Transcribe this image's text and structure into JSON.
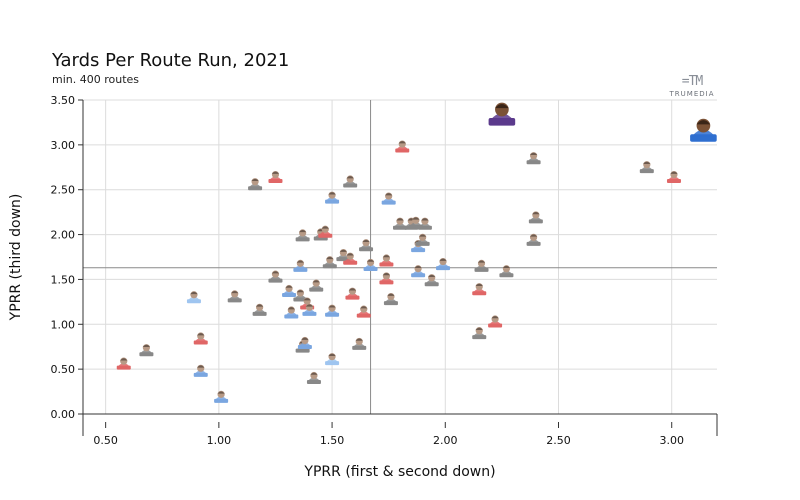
{
  "chart_data": {
    "type": "scatter",
    "title": "Yards Per Route Run, 2021",
    "subtitle": "min. 400 routes",
    "brand": "TRUMEDIA",
    "xlabel": "YPRR (first & second down)",
    "ylabel": "YPRR (third down)",
    "xlim": [
      0.4,
      3.2
    ],
    "ylim": [
      0.0,
      3.5
    ],
    "xticks": [
      "0.50",
      "1.00",
      "1.50",
      "2.00",
      "2.50",
      "3.00"
    ],
    "yticks": [
      "0.00",
      "0.50",
      "1.00",
      "1.50",
      "2.00",
      "2.50",
      "3.00",
      "3.50"
    ],
    "reference_lines": {
      "x": 1.67,
      "y": 1.63
    },
    "grid": true,
    "points": [
      {
        "x": 0.58,
        "y": 0.55,
        "color": "#e06666"
      },
      {
        "x": 0.68,
        "y": 0.7,
        "color": "#888888"
      },
      {
        "x": 0.92,
        "y": 0.47,
        "color": "#7aa6e0"
      },
      {
        "x": 0.92,
        "y": 0.83,
        "color": "#e06666"
      },
      {
        "x": 0.89,
        "y": 1.29,
        "color": "#9fc5f0"
      },
      {
        "x": 1.01,
        "y": 0.18,
        "color": "#7aa6e0"
      },
      {
        "x": 1.07,
        "y": 1.3,
        "color": "#888888"
      },
      {
        "x": 1.18,
        "y": 1.15,
        "color": "#888888"
      },
      {
        "x": 1.16,
        "y": 2.55,
        "color": "#888888"
      },
      {
        "x": 1.25,
        "y": 2.63,
        "color": "#e06666"
      },
      {
        "x": 1.25,
        "y": 1.52,
        "color": "#888888"
      },
      {
        "x": 1.31,
        "y": 1.36,
        "color": "#7aa6e0"
      },
      {
        "x": 1.32,
        "y": 1.12,
        "color": "#7aa6e0"
      },
      {
        "x": 1.36,
        "y": 1.64,
        "color": "#7aa6e0"
      },
      {
        "x": 1.36,
        "y": 1.31,
        "color": "#888888"
      },
      {
        "x": 1.37,
        "y": 1.98,
        "color": "#888888"
      },
      {
        "x": 1.37,
        "y": 0.74,
        "color": "#888888"
      },
      {
        "x": 1.38,
        "y": 0.78,
        "color": "#7aa6e0"
      },
      {
        "x": 1.39,
        "y": 1.22,
        "color": "#e06666"
      },
      {
        "x": 1.4,
        "y": 1.15,
        "color": "#7aa6e0"
      },
      {
        "x": 1.42,
        "y": 0.39,
        "color": "#888888"
      },
      {
        "x": 1.43,
        "y": 1.42,
        "color": "#888888"
      },
      {
        "x": 1.45,
        "y": 1.99,
        "color": "#888888"
      },
      {
        "x": 1.47,
        "y": 2.02,
        "color": "#e06666"
      },
      {
        "x": 1.49,
        "y": 1.68,
        "color": "#888888"
      },
      {
        "x": 1.5,
        "y": 2.4,
        "color": "#7aa6e0"
      },
      {
        "x": 1.5,
        "y": 1.14,
        "color": "#7aa6e0"
      },
      {
        "x": 1.5,
        "y": 0.6,
        "color": "#9fc5f0"
      },
      {
        "x": 1.55,
        "y": 1.76,
        "color": "#888888"
      },
      {
        "x": 1.58,
        "y": 2.58,
        "color": "#888888"
      },
      {
        "x": 1.58,
        "y": 1.72,
        "color": "#e06666"
      },
      {
        "x": 1.59,
        "y": 1.33,
        "color": "#e06666"
      },
      {
        "x": 1.62,
        "y": 0.77,
        "color": "#888888"
      },
      {
        "x": 1.64,
        "y": 1.13,
        "color": "#e06666"
      },
      {
        "x": 1.65,
        "y": 1.87,
        "color": "#888888"
      },
      {
        "x": 1.67,
        "y": 1.65,
        "color": "#7aa6e0"
      },
      {
        "x": 1.74,
        "y": 1.7,
        "color": "#e06666"
      },
      {
        "x": 1.74,
        "y": 1.5,
        "color": "#e06666"
      },
      {
        "x": 1.75,
        "y": 2.39,
        "color": "#7aa6e0"
      },
      {
        "x": 1.76,
        "y": 1.27,
        "color": "#888888"
      },
      {
        "x": 1.8,
        "y": 2.11,
        "color": "#888888"
      },
      {
        "x": 1.81,
        "y": 2.97,
        "color": "#e06666"
      },
      {
        "x": 1.85,
        "y": 2.11,
        "color": "#888888"
      },
      {
        "x": 1.87,
        "y": 2.12,
        "color": "#888888"
      },
      {
        "x": 1.88,
        "y": 1.86,
        "color": "#7aa6e0"
      },
      {
        "x": 1.88,
        "y": 1.58,
        "color": "#7aa6e0"
      },
      {
        "x": 1.9,
        "y": 1.93,
        "color": "#888888"
      },
      {
        "x": 1.91,
        "y": 2.11,
        "color": "#888888"
      },
      {
        "x": 1.94,
        "y": 1.48,
        "color": "#888888"
      },
      {
        "x": 1.99,
        "y": 1.66,
        "color": "#7aa6e0"
      },
      {
        "x": 2.15,
        "y": 1.38,
        "color": "#e06666"
      },
      {
        "x": 2.15,
        "y": 0.89,
        "color": "#888888"
      },
      {
        "x": 2.16,
        "y": 1.64,
        "color": "#888888"
      },
      {
        "x": 2.22,
        "y": 1.02,
        "color": "#e06666"
      },
      {
        "x": 2.25,
        "y": 3.32,
        "color": "#5b3a8c",
        "highlight": true
      },
      {
        "x": 2.27,
        "y": 1.58,
        "color": "#888888"
      },
      {
        "x": 2.39,
        "y": 2.84,
        "color": "#888888"
      },
      {
        "x": 2.39,
        "y": 1.93,
        "color": "#888888"
      },
      {
        "x": 2.4,
        "y": 2.18,
        "color": "#888888"
      },
      {
        "x": 2.89,
        "y": 2.74,
        "color": "#888888"
      },
      {
        "x": 3.01,
        "y": 2.63,
        "color": "#e06666"
      },
      {
        "x": 3.14,
        "y": 3.14,
        "color": "#2f6fd0",
        "highlight": true
      }
    ]
  }
}
